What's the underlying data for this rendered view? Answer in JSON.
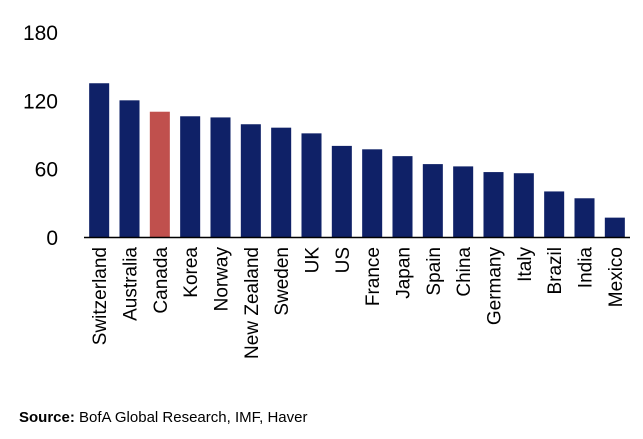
{
  "chart_data": {
    "type": "bar",
    "categories": [
      "Switzerland",
      "Australia",
      "Canada",
      "Korea",
      "Norway",
      "New Zealand",
      "Sweden",
      "UK",
      "US",
      "France",
      "Japan",
      "Spain",
      "China",
      "Germany",
      "Italy",
      "Brazil",
      "India",
      "Mexico"
    ],
    "values": [
      135,
      120,
      110,
      106,
      105,
      99,
      96,
      91,
      80,
      77,
      71,
      64,
      62,
      57,
      56,
      40,
      34,
      17
    ],
    "highlight_category": "Canada",
    "bar_color": "#0F2167",
    "highlight_color": "#C0504D",
    "ylim": [
      0,
      180
    ],
    "yticks": [
      "0",
      "60",
      "120",
      "180"
    ],
    "title": "",
    "xlabel": "",
    "ylabel": "",
    "grid": false
  },
  "source": {
    "label": "Source:",
    "text": " BofA Global Research, IMF, Haver"
  }
}
